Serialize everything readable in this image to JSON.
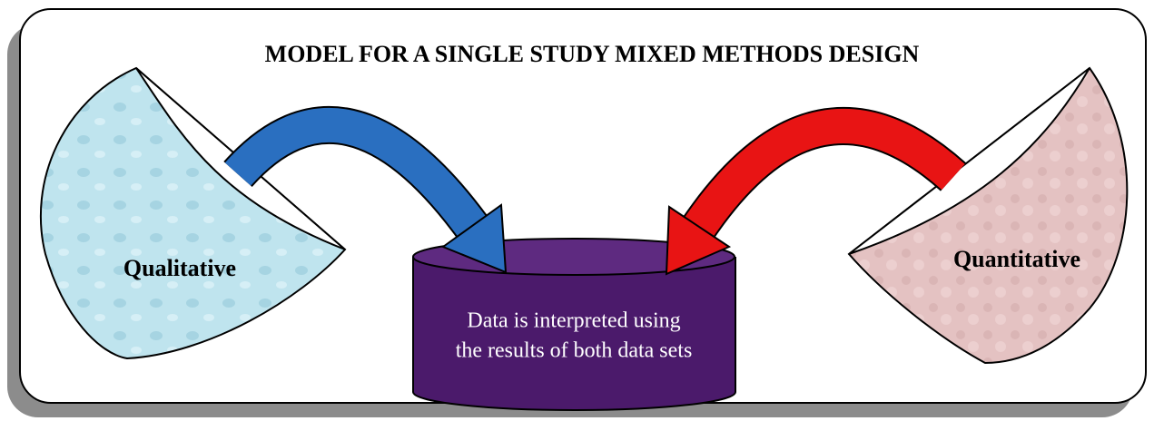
{
  "title": "MODEL FOR A SINGLE STUDY MIXED METHODS DESIGN",
  "nodes": [
    {
      "label": "Qualitative"
    },
    {
      "label": "Quantitative"
    },
    {
      "label_lines": [
        "Data is interpreted using",
        "the results of both data sets"
      ]
    }
  ]
}
